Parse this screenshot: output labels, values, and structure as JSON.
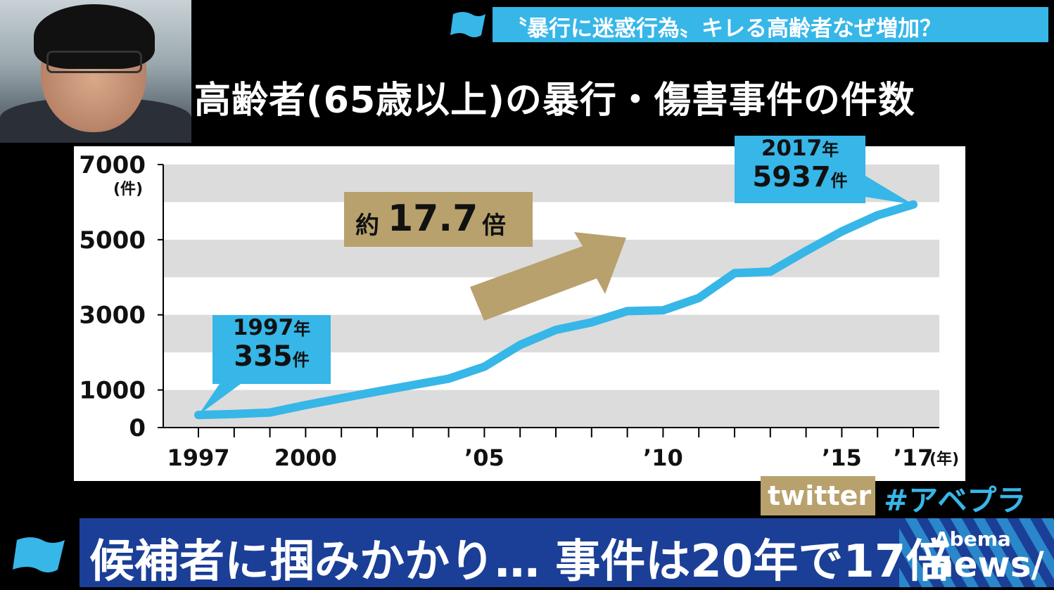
{
  "top_headline": "〝暴行に迷惑行為〟キレる高齢者なぜ増加？",
  "chart_data": {
    "type": "line",
    "title": "高齢者(65歳以上)の暴行・傷害事件の件数",
    "y_unit": "(件)",
    "x_unit": "(年)",
    "ylim": [
      0,
      7000
    ],
    "y_ticks": [
      0,
      1000,
      3000,
      5000,
      7000
    ],
    "x_tick_labels": [
      {
        "year": 1997,
        "label": "1997"
      },
      {
        "year": 2000,
        "label": "2000"
      },
      {
        "year": 2005,
        "label": "’05"
      },
      {
        "year": 2010,
        "label": "’10"
      },
      {
        "year": 2015,
        "label": "’15"
      },
      {
        "year": 2017,
        "label": "’17"
      }
    ],
    "xlim": [
      1997,
      2017
    ],
    "grid_bands": true,
    "series": [
      {
        "color": "#37b6e8",
        "x": [
          1997,
          1998,
          1999,
          2000,
          2001,
          2002,
          2003,
          2004,
          2005,
          2006,
          2007,
          2008,
          2009,
          2010,
          2011,
          2012,
          2013,
          2014,
          2015,
          2016,
          2017
        ],
        "values": [
          335,
          360,
          400,
          600,
          780,
          960,
          1130,
          1300,
          1620,
          2200,
          2600,
          2800,
          3100,
          3120,
          3450,
          4110,
          4150,
          4700,
          5220,
          5650,
          5937
        ]
      }
    ],
    "callouts": [
      {
        "year_label": "1997",
        "year_unit": "年",
        "count": "335",
        "count_unit": "件"
      },
      {
        "year_label": "2017",
        "year_unit": "年",
        "count": "5937",
        "count_unit": "件"
      }
    ],
    "annotation": {
      "prefix": "約",
      "value": "17.7",
      "suffix": "倍"
    }
  },
  "twitter_label": "twitter",
  "hashtag": "#アベプラ",
  "bottom_caption": "候補者に掴みかかり… 事件は20年で17倍",
  "logo": {
    "line1": "Abema",
    "line2": "news/"
  },
  "colors": {
    "accent_blue": "#37b6e8",
    "gold": "#b8a16c",
    "navy": "#1b3f97",
    "band_gray": "#dcdcdc"
  }
}
